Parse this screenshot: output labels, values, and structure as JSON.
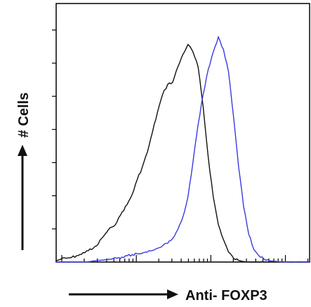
{
  "chart_data": {
    "type": "line",
    "title": "",
    "xlabel": "Anti- FOXP3",
    "ylabel": "# Cells",
    "x_scale": "log",
    "xlim": [
      0,
      100
    ],
    "ylim": [
      0,
      100
    ],
    "y_tick_count": 7,
    "grid": false,
    "legend": "none",
    "series": [
      {
        "color": "#111111",
        "x": [
          0,
          2,
          4,
          6,
          8,
          10,
          12,
          14,
          16,
          18,
          20,
          22,
          24,
          26,
          28,
          30,
          32,
          34,
          36,
          38,
          40,
          42,
          44,
          46,
          48,
          50,
          52,
          54,
          56,
          58,
          60,
          62,
          64,
          66,
          68,
          70,
          72,
          74,
          76,
          78,
          80,
          82,
          84,
          86,
          88,
          90,
          92,
          94,
          96,
          98,
          100
        ],
        "values": [
          0.5,
          1.2,
          1.5,
          1.8,
          2.5,
          3.1,
          4.5,
          5.0,
          6.5,
          9.5,
          12.0,
          14.0,
          16.0,
          20.0,
          23.0,
          27.0,
          33.0,
          38.0,
          44.0,
          52.0,
          60.0,
          67.0,
          71.0,
          72.0,
          78.0,
          83.0,
          87.0,
          84.0,
          78.0,
          62.0,
          42.0,
          26.0,
          15.0,
          9.0,
          4.0,
          1.5,
          0.6,
          0.2,
          0.1,
          0.0,
          0.0,
          0.0,
          0.0,
          0.0,
          0.0,
          0.0,
          0.0,
          0.0,
          0.0,
          0.0,
          0.0
        ]
      },
      {
        "color": "#3a3ae0",
        "x": [
          0,
          2,
          4,
          6,
          8,
          10,
          12,
          14,
          16,
          18,
          20,
          22,
          24,
          26,
          28,
          30,
          32,
          34,
          36,
          38,
          40,
          42,
          44,
          46,
          48,
          50,
          52,
          54,
          56,
          58,
          60,
          62,
          64,
          66,
          68,
          70,
          72,
          74,
          76,
          78,
          80,
          82,
          84,
          86,
          88,
          90,
          92,
          94,
          96,
          98,
          100
        ],
        "values": [
          0.0,
          0.0,
          0.0,
          0.0,
          0.0,
          0.0,
          0.0,
          0.3,
          0.6,
          0.8,
          1.0,
          1.2,
          1.5,
          2.0,
          2.5,
          3.0,
          3.3,
          3.6,
          4.0,
          4.6,
          5.5,
          6.5,
          7.5,
          9.5,
          13.0,
          18.0,
          26.0,
          40.0,
          55.0,
          67.0,
          77.0,
          84.0,
          90.0,
          85.0,
          76.0,
          58.0,
          38.0,
          22.0,
          11.0,
          5.0,
          2.5,
          1.2,
          0.6,
          0.3,
          0.1,
          0.0,
          0.0,
          0.0,
          0.0,
          0.0,
          0.0
        ]
      }
    ]
  },
  "icons": {
    "y_axis_arrow": "arrow-up-icon",
    "x_axis_arrow": "arrow-right-icon"
  }
}
